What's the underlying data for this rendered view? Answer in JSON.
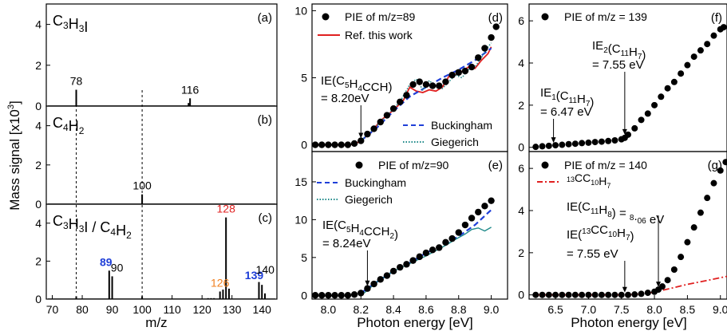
{
  "colors": {
    "data": "#000000",
    "ref": "#e02020",
    "buckingham": "#1f3fd8",
    "giegerich": "#1f8a8a",
    "c13": "#e02020",
    "label89": "#1f3fd8",
    "label139": "#1f3fd8",
    "label128": "#e02020",
    "label126": "#f08020"
  },
  "figure": {
    "mass_ylabel": "Mass signal [x10",
    "mass_ylabel_exp": "3",
    "mass_ylabel_end": "]",
    "mz_xlabel": "m/z",
    "pe_xlabel": "Photon energy [eV]"
  },
  "chart_data": [
    {
      "id": "a",
      "type": "bar",
      "panel_label": "(a)",
      "compound": {
        "base": "C",
        "parts": [
          [
            "C",
            "3"
          ],
          [
            "H",
            "3"
          ],
          [
            "I",
            ""
          ]
        ]
      },
      "xlim": [
        68,
        145
      ],
      "ylim": [
        0,
        5
      ],
      "yticks": [
        0,
        2,
        4
      ],
      "x": [
        78,
        115.5,
        116
      ],
      "values": [
        0.8,
        0.15,
        0.38
      ],
      "data_labels": [
        {
          "x": 78,
          "text": "78"
        },
        {
          "x": 116,
          "text": "116"
        }
      ]
    },
    {
      "id": "b",
      "type": "bar",
      "panel_label": "(b)",
      "compound": {
        "parts": [
          [
            "C",
            "4"
          ],
          [
            "H",
            "2"
          ]
        ]
      },
      "xlim": [
        68,
        145
      ],
      "ylim": [
        0,
        5
      ],
      "yticks": [
        0,
        2,
        4
      ],
      "x": [
        100
      ],
      "values": [
        0.5
      ],
      "data_labels": [
        {
          "x": 100,
          "text": "100"
        }
      ]
    },
    {
      "id": "c",
      "type": "bar",
      "panel_label": "(c)",
      "compound_text": "C3H3I / C4H2",
      "xlim": [
        68,
        145
      ],
      "ylim": [
        0,
        5
      ],
      "yticks": [
        0,
        2,
        4
      ],
      "xticks": [
        70,
        80,
        90,
        100,
        110,
        120,
        130,
        140
      ],
      "x": [
        78,
        89,
        90,
        100,
        122,
        123,
        124,
        126,
        127,
        128,
        129,
        139,
        140,
        141
      ],
      "values": [
        0.15,
        1.5,
        1.2,
        0.15,
        0.05,
        0.05,
        0.05,
        0.4,
        0.5,
        4.3,
        0.55,
        0.9,
        0.75,
        0.3
      ],
      "data_labels": [
        {
          "x": 89,
          "text": "89",
          "bold": true,
          "color": "label89"
        },
        {
          "x": 90,
          "text": "90"
        },
        {
          "x": 126,
          "text": "126",
          "color": "label126"
        },
        {
          "x": 128,
          "text": "128",
          "color": "label128"
        },
        {
          "x": 139,
          "text": "139",
          "bold": true,
          "color": "label139"
        },
        {
          "x": 140,
          "text": "140"
        }
      ],
      "dashed_x": [
        78,
        100
      ]
    },
    {
      "id": "d",
      "type": "scatter",
      "panel_label": "(d)",
      "xlim": [
        7.9,
        9.1
      ],
      "ylim": [
        -0.5,
        10.5
      ],
      "yticks": [
        0,
        5,
        10
      ],
      "legend": [
        {
          "kind": "point",
          "text": "PIE of m/z=89"
        },
        {
          "kind": "line",
          "color": "ref",
          "text": "Ref. this work"
        }
      ],
      "annotation": {
        "line1": "IE(C5H4CCH)",
        "line2": "= 8.20eV",
        "arrow_x": 8.2
      },
      "extra_legend": [
        {
          "kind": "dash",
          "color": "buckingham",
          "text": "Buckingham"
        },
        {
          "kind": "dot",
          "color": "giegerich",
          "text": "Giegerich"
        }
      ],
      "points": {
        "x": [
          7.92,
          7.96,
          8.0,
          8.04,
          8.08,
          8.12,
          8.16,
          8.2,
          8.24,
          8.28,
          8.32,
          8.36,
          8.4,
          8.44,
          8.48,
          8.52,
          8.56,
          8.6,
          8.64,
          8.68,
          8.72,
          8.76,
          8.8,
          8.84,
          8.88,
          8.92,
          8.96,
          9.0,
          9.03
        ],
        "y": [
          0,
          0,
          0,
          0,
          0,
          0,
          0.1,
          0.3,
          0.8,
          1.2,
          1.7,
          2.2,
          2.7,
          3.2,
          3.7,
          4.5,
          4.7,
          4.5,
          4.4,
          4.4,
          4.7,
          5.2,
          5.4,
          5.5,
          5.8,
          6.5,
          7.2,
          8,
          8.8
        ]
      },
      "series": [
        {
          "name": "Ref. this work",
          "color": "ref",
          "style": "solid",
          "x": [
            7.92,
            8.0,
            8.1,
            8.16,
            8.2,
            8.26,
            8.32,
            8.4,
            8.46,
            8.5,
            8.54,
            8.58,
            8.62,
            8.66,
            8.7,
            8.74,
            8.8,
            8.86,
            8.9,
            8.94,
            8.98,
            9.0
          ],
          "y": [
            0,
            0,
            0,
            0.05,
            0.3,
            0.9,
            1.8,
            2.6,
            3.3,
            4.3,
            4.0,
            3.9,
            4.1,
            4.0,
            4.3,
            5.1,
            5.3,
            5.8,
            5.7,
            6.3,
            6.8,
            7.3
          ]
        },
        {
          "name": "Buckingham",
          "color": "buckingham",
          "style": "dash",
          "x": [
            8.2,
            8.3,
            8.4,
            8.5,
            8.6,
            8.7,
            8.8,
            8.9,
            9.0
          ],
          "y": [
            0.3,
            1.3,
            2.5,
            3.6,
            4.3,
            5.0,
            5.6,
            6.3,
            7.2
          ]
        },
        {
          "name": "Giegerich",
          "color": "giegerich",
          "style": "dot",
          "x": [
            8.2,
            8.28,
            8.36,
            8.44,
            8.5,
            8.54,
            8.58,
            8.62,
            8.66,
            8.7,
            8.74,
            8.78,
            8.82,
            8.86,
            8.9,
            8.94,
            8.98,
            9.0
          ],
          "y": [
            0.3,
            1.2,
            2.2,
            3.2,
            4.5,
            4.9,
            4.1,
            4.8,
            4.3,
            4.2,
            4.7,
            5.2,
            5.0,
            5.6,
            5.8,
            6.5,
            7.3,
            7.6
          ]
        }
      ]
    },
    {
      "id": "e",
      "type": "scatter",
      "panel_label": "(e)",
      "xlim": [
        7.9,
        9.1
      ],
      "ylim": [
        -0.5,
        19
      ],
      "yticks": [
        0,
        5,
        10,
        15
      ],
      "xticks": [
        8.0,
        8.2,
        8.4,
        8.6,
        8.8,
        9.0
      ],
      "legend": [
        {
          "kind": "point",
          "text": "PIE of m/z=90"
        },
        {
          "kind": "dash",
          "color": "buckingham",
          "text": "Buckingham"
        },
        {
          "kind": "dot",
          "color": "giegerich",
          "text": "Giegerich"
        }
      ],
      "annotation": {
        "line1": "IE(C5H4CCH2)",
        "line2": "= 8.24eV",
        "arrow_x": 8.24
      },
      "points": {
        "x": [
          7.92,
          7.96,
          8.0,
          8.04,
          8.08,
          8.12,
          8.16,
          8.2,
          8.24,
          8.28,
          8.32,
          8.36,
          8.4,
          8.44,
          8.48,
          8.52,
          8.56,
          8.6,
          8.64,
          8.68,
          8.72,
          8.76,
          8.8,
          8.84,
          8.88,
          8.92,
          8.96,
          9.0
        ],
        "y": [
          0,
          0,
          0,
          0,
          0,
          0,
          0.1,
          0.3,
          0.9,
          1.5,
          2.1,
          2.6,
          3.2,
          3.7,
          4.1,
          4.6,
          5.1,
          5.6,
          6.0,
          6.3,
          7.0,
          7.5,
          8.3,
          9.3,
          10.2,
          11.0,
          11.8,
          12.5
        ]
      },
      "series": [
        {
          "name": "Buckingham",
          "color": "buckingham",
          "style": "dash",
          "x": [
            8.2,
            8.3,
            8.4,
            8.5,
            8.6,
            8.7,
            8.8,
            8.9,
            9.0
          ],
          "y": [
            0.3,
            1.8,
            3.2,
            4.3,
            5.6,
            6.6,
            7.8,
            9.3,
            11.3
          ]
        },
        {
          "name": "Giegerich",
          "color": "giegerich",
          "style": "solid-thin",
          "x": [
            8.22,
            8.3,
            8.4,
            8.5,
            8.6,
            8.66,
            8.72,
            8.78,
            8.84,
            8.88,
            8.92,
            8.96,
            9.0
          ],
          "y": [
            0.3,
            1.8,
            3.2,
            4.2,
            5.2,
            5.9,
            6.6,
            7.4,
            8.1,
            8.7,
            8.9,
            8.5,
            9.0
          ]
        }
      ]
    },
    {
      "id": "f",
      "type": "scatter",
      "panel_label": "(f)",
      "xlim": [
        6.1,
        9.1
      ],
      "ylim": [
        -0.2,
        6.8
      ],
      "yticks": [
        0,
        2,
        4,
        6
      ],
      "legend": [
        {
          "kind": "point",
          "text": "PIE of m/z = 139"
        }
      ],
      "annotations": [
        {
          "line1": "IE1(C11H7)",
          "line2": "= 6.47 eV",
          "arrow_x": 6.47
        },
        {
          "line1": "IE2(C11H7)",
          "line2": "= 7.55 eV",
          "arrow_x": 7.55
        }
      ],
      "points": {
        "x": [
          6.2,
          6.3,
          6.4,
          6.5,
          6.6,
          6.7,
          6.8,
          6.9,
          7.0,
          7.1,
          7.2,
          7.3,
          7.4,
          7.5,
          7.55,
          7.6,
          7.7,
          7.8,
          7.9,
          8.0,
          8.1,
          8.2,
          8.3,
          8.4,
          8.5,
          8.6,
          8.7,
          8.8,
          8.9,
          9.0,
          9.05
        ],
        "y": [
          0.02,
          0.05,
          0.07,
          0.1,
          0.12,
          0.15,
          0.17,
          0.2,
          0.22,
          0.25,
          0.27,
          0.3,
          0.33,
          0.38,
          0.45,
          0.6,
          0.9,
          1.3,
          1.6,
          2.0,
          2.4,
          2.8,
          3.1,
          3.5,
          3.9,
          4.3,
          4.6,
          4.9,
          5.3,
          5.6,
          5.7
        ]
      }
    },
    {
      "id": "g",
      "type": "scatter",
      "panel_label": "(g)",
      "xlim": [
        6.1,
        9.1
      ],
      "ylim": [
        -0.2,
        6.8
      ],
      "yticks": [
        0,
        2,
        4,
        6
      ],
      "xticks": [
        6.5,
        7.0,
        7.5,
        8.0,
        8.5,
        9.0
      ],
      "legend": [
        {
          "kind": "point",
          "text": "PIE of m/z = 140"
        },
        {
          "kind": "dashdot",
          "color": "c13",
          "text": "13CC10H7"
        }
      ],
      "annotations": [
        {
          "line1": "IE(C11H8) = 8.06 eV",
          "arrow_x": 8.06
        },
        {
          "line1": "IE(13CC10H7)",
          "line2": "= 7.55 eV",
          "arrow_x": 7.55
        }
      ],
      "points": {
        "x": [
          6.2,
          6.3,
          6.4,
          6.5,
          6.6,
          6.7,
          6.8,
          6.9,
          7.0,
          7.1,
          7.2,
          7.3,
          7.4,
          7.5,
          7.6,
          7.7,
          7.8,
          7.9,
          8.0,
          8.06,
          8.12,
          8.2,
          8.3,
          8.4,
          8.5,
          8.6,
          8.7,
          8.8,
          8.9,
          9.0,
          9.08
        ],
        "y": [
          0,
          0,
          0,
          0,
          0,
          0,
          0,
          0,
          0,
          0,
          0,
          0,
          0,
          0,
          0,
          0.02,
          0.05,
          0.1,
          0.15,
          0.25,
          0.4,
          0.7,
          1.2,
          1.8,
          2.5,
          3.2,
          3.9,
          4.6,
          5.3,
          5.9,
          6.3
        ]
      },
      "series": [
        {
          "name": "13CC10H7",
          "color": "c13",
          "style": "dashdot",
          "x": [
            6.2,
            7.5,
            7.7,
            7.9,
            8.1,
            8.3,
            8.5,
            8.7,
            8.9,
            9.1
          ],
          "y": [
            0,
            0,
            0.02,
            0.08,
            0.2,
            0.35,
            0.5,
            0.62,
            0.75,
            0.88
          ]
        }
      ]
    }
  ]
}
